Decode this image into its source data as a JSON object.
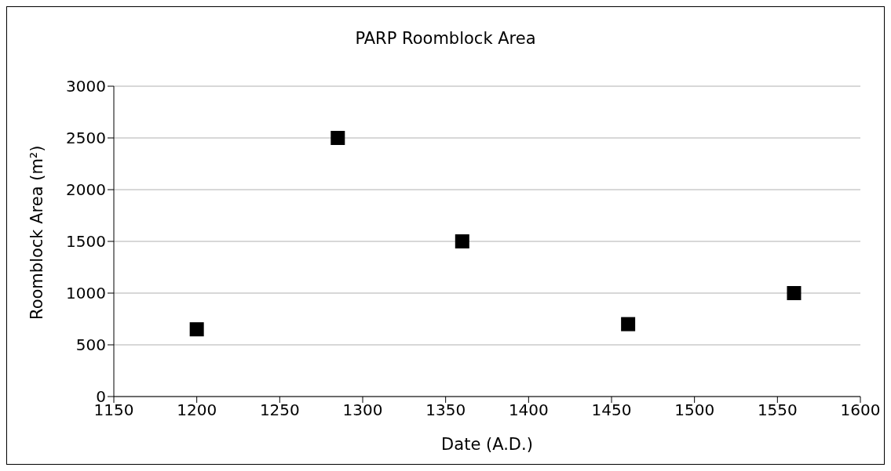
{
  "chart_data": {
    "type": "scatter",
    "title": "PARP Roomblock Area",
    "xlabel": "Date (A.D.)",
    "ylabel": "Roomblock Area (m²)",
    "x": [
      1200,
      1285,
      1360,
      1460,
      1560
    ],
    "series": [
      {
        "color": "#000000",
        "values": [
          650,
          2500,
          1500,
          700,
          1000
        ]
      }
    ],
    "xlim": [
      1150,
      1600
    ],
    "xticks": [
      1150,
      1200,
      1250,
      1300,
      1350,
      1400,
      1450,
      1500,
      1550,
      1600
    ],
    "ylim": [
      0,
      3000
    ],
    "yticks": [
      0,
      500,
      1000,
      1500,
      2000,
      2500,
      3000
    ],
    "grid": "y",
    "marker": "square"
  }
}
